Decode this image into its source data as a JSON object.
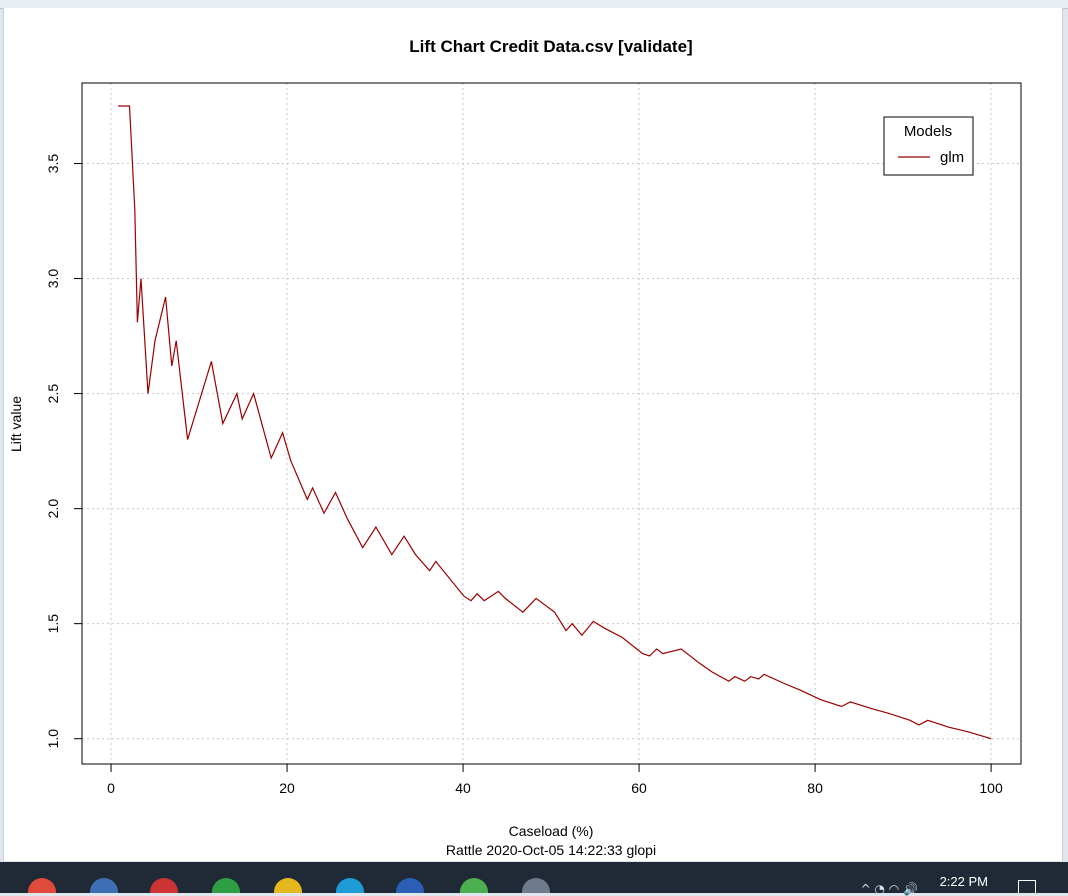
{
  "chart_data": {
    "type": "line",
    "title": "Lift Chart  Credit Data.csv [validate]",
    "xlabel": "Caseload (%)",
    "ylabel": "Lift value",
    "footer": "Rattle 2020-Oct-05 14:22:33 glopi",
    "xlim": [
      -3.3,
      103.4
    ],
    "ylim": [
      0.89,
      3.85
    ],
    "x_ticks": [
      0,
      20,
      40,
      60,
      80,
      100
    ],
    "x_tick_labels": [
      "0",
      "20",
      "40",
      "60",
      "80",
      "100"
    ],
    "y_ticks": [
      1.0,
      1.5,
      2.0,
      2.5,
      3.0,
      3.5
    ],
    "y_tick_labels": [
      "1.0",
      "1.5",
      "2.0",
      "2.5",
      "3.0",
      "3.5"
    ],
    "grid": true,
    "legend": {
      "title": "Models",
      "position": "top-right"
    },
    "series": [
      {
        "name": "glm",
        "color": "#990000",
        "x": [
          0.8,
          2.1,
          2.7,
          3.0,
          3.4,
          4.2,
          5.0,
          6.2,
          6.9,
          7.4,
          8.7,
          11.4,
          12.7,
          14.3,
          14.9,
          16.2,
          18.2,
          19.5,
          20.4,
          22.3,
          22.9,
          24.2,
          25.5,
          26.8,
          28.6,
          30.1,
          31.9,
          33.3,
          34.6,
          36.2,
          36.9,
          40.1,
          40.9,
          41.6,
          42.4,
          44.0,
          44.8,
          46.8,
          48.3,
          50.4,
          51.7,
          52.4,
          53.5,
          54.8,
          56.1,
          58.1,
          60.4,
          61.2,
          62.0,
          62.7,
          64.8,
          66.8,
          68.3,
          70.2,
          70.9,
          72.0,
          72.7,
          73.6,
          74.2,
          76.5,
          78.4,
          80.6,
          83.0,
          84.0,
          86.5,
          88.4,
          90.8,
          91.8,
          92.8,
          95.2,
          97.4,
          100.0
        ],
        "y": [
          3.75,
          3.75,
          3.3,
          2.81,
          3.0,
          2.5,
          2.73,
          2.92,
          2.62,
          2.73,
          2.3,
          2.64,
          2.37,
          2.5,
          2.39,
          2.5,
          2.22,
          2.33,
          2.21,
          2.04,
          2.09,
          1.98,
          2.07,
          1.96,
          1.83,
          1.92,
          1.8,
          1.88,
          1.8,
          1.73,
          1.77,
          1.62,
          1.6,
          1.63,
          1.6,
          1.64,
          1.61,
          1.55,
          1.61,
          1.55,
          1.47,
          1.5,
          1.45,
          1.51,
          1.48,
          1.44,
          1.37,
          1.36,
          1.39,
          1.37,
          1.39,
          1.33,
          1.29,
          1.25,
          1.27,
          1.25,
          1.27,
          1.26,
          1.28,
          1.24,
          1.21,
          1.17,
          1.14,
          1.16,
          1.13,
          1.11,
          1.08,
          1.06,
          1.08,
          1.05,
          1.03,
          1.0
        ]
      }
    ]
  },
  "taskbar": {
    "time": "2:22 PM",
    "tray": "^  ◔  ◠  🔊",
    "apps": [
      {
        "icon": "chrome-icon",
        "color": "#e04a3a"
      },
      {
        "icon": "r-app-icon",
        "color": "#3d6fb4"
      },
      {
        "icon": "snipping-tool-icon",
        "color": "#cc3333"
      },
      {
        "icon": "refresh-app-icon",
        "color": "#2e9d44"
      },
      {
        "icon": "file-explorer-icon",
        "color": "#e6b81e"
      },
      {
        "icon": "edge-icon",
        "color": "#1f9bd8"
      },
      {
        "icon": "word-icon",
        "color": "#2b5fb5"
      },
      {
        "icon": "loading-app-icon",
        "color": "#4caf50"
      },
      {
        "icon": "r-console-icon",
        "color": "#6d7b8d"
      }
    ]
  }
}
